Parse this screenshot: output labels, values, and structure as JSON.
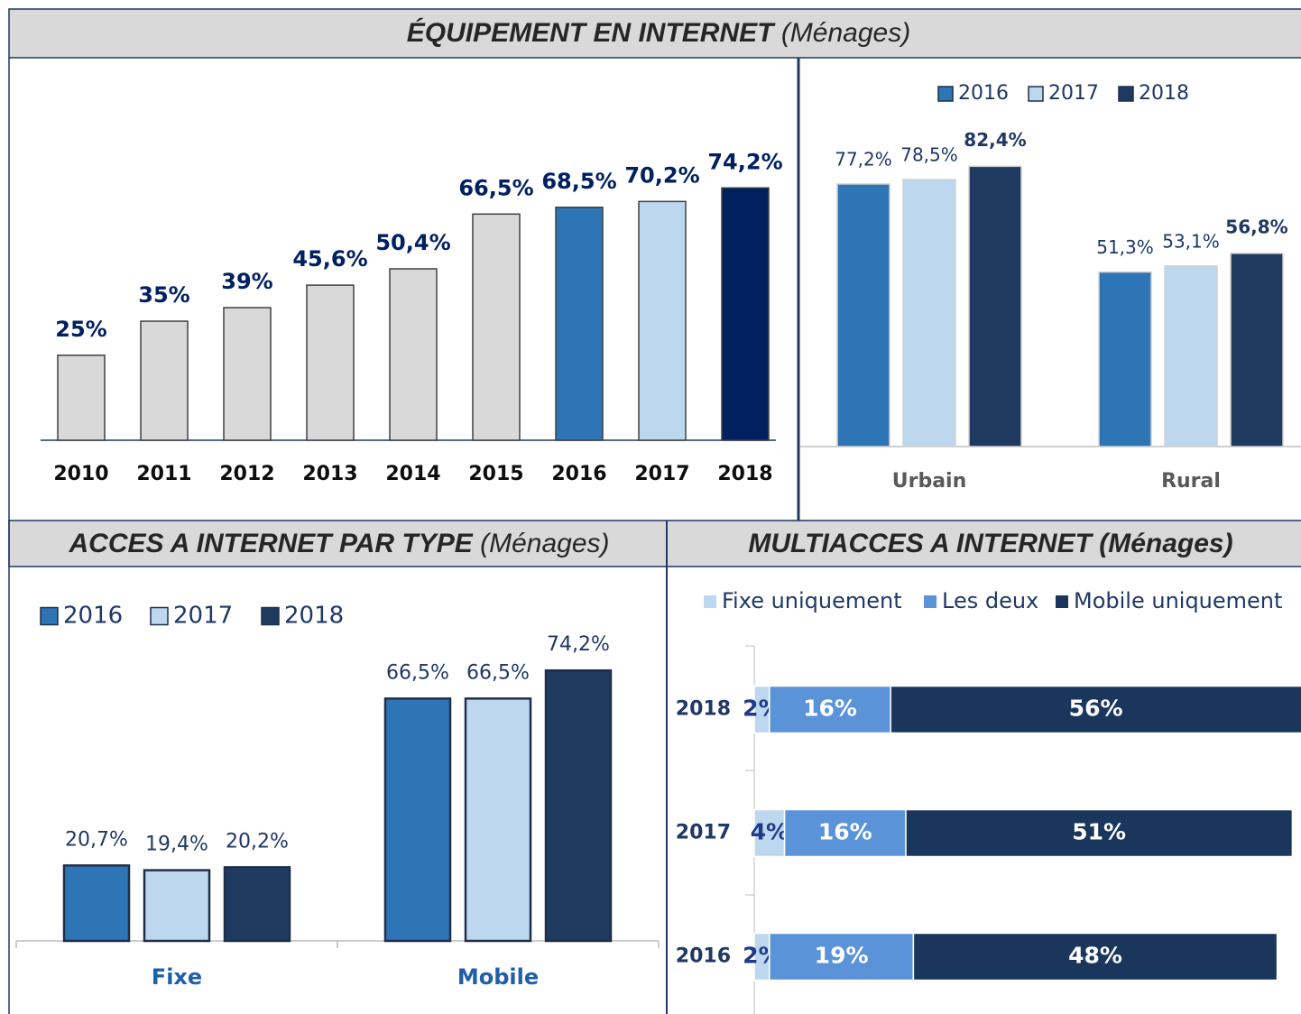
{
  "sections": [
    {
      "title": "ÉQUIPEMENT EN INTERNET",
      "subtitle": "(Ménages)"
    },
    {
      "title": "ACCES A INTERNET PAR TYPE",
      "subtitle": "(Ménages)"
    },
    {
      "title": "MULTIACCES A INTERNET (Ménages)"
    }
  ],
  "chart_data": [
    {
      "type": "bar",
      "categories": [
        "2010",
        "2011",
        "2012",
        "2013",
        "2014",
        "2015",
        "2016",
        "2017",
        "2018"
      ],
      "values": [
        25,
        35,
        39,
        45.6,
        50.4,
        66.5,
        68.5,
        70.2,
        74.2
      ],
      "value_labels": [
        "25%",
        "35%",
        "39%",
        "45,6%",
        "50,4%",
        "66,5%",
        "68,5%",
        "70,2%",
        "74,2%"
      ],
      "colors": [
        "#d9d9d9",
        "#d9d9d9",
        "#d9d9d9",
        "#d9d9d9",
        "#d9d9d9",
        "#d9d9d9",
        "#2e75b6",
        "#bdd7ee",
        "#002060"
      ],
      "ylim": [
        0,
        100
      ]
    },
    {
      "type": "grouped_bar",
      "categories": [
        "Urbain",
        "Rural"
      ],
      "series": [
        {
          "name": "2016",
          "color": "#2e75b6",
          "values": [
            77.2,
            51.3
          ],
          "value_labels": [
            "77,2%",
            "51,3%"
          ]
        },
        {
          "name": "2017",
          "color": "#bdd7ee",
          "values": [
            78.5,
            53.1
          ],
          "value_labels": [
            "78,5%",
            "53,1%"
          ]
        },
        {
          "name": "2018",
          "color": "#1f3a5f",
          "values": [
            82.4,
            56.8
          ],
          "value_labels": [
            "82,4%",
            "56,8%"
          ]
        }
      ],
      "ylim": [
        0,
        100
      ]
    },
    {
      "type": "grouped_bar",
      "categories": [
        "Fixe",
        "Mobile"
      ],
      "series": [
        {
          "name": "2016",
          "color": "#2e75b6",
          "values": [
            20.7,
            66.5
          ],
          "value_labels": [
            "20,7%",
            "66,5%"
          ]
        },
        {
          "name": "2017",
          "color": "#bdd7ee",
          "values": [
            19.4,
            66.5
          ],
          "value_labels": [
            "19,4%",
            "66,5%"
          ]
        },
        {
          "name": "2018",
          "color": "#1f3a5f",
          "values": [
            20.2,
            74.2
          ],
          "value_labels": [
            "20,2%",
            "74,2%"
          ]
        }
      ],
      "ylim": [
        0,
        100
      ]
    },
    {
      "type": "stacked_barh",
      "categories": [
        "2018",
        "2017",
        "2016"
      ],
      "series": [
        {
          "name": "Fixe uniquement",
          "color": "#bdd7ee",
          "values": [
            2,
            4,
            2
          ],
          "value_labels": [
            "2%",
            "4%",
            "2%"
          ]
        },
        {
          "name": "Les deux",
          "color": "#5b93d9",
          "values": [
            16,
            16,
            19
          ],
          "value_labels": [
            "16%",
            "16%",
            "19%"
          ]
        },
        {
          "name": "Mobile uniquement",
          "color": "#1a365d",
          "values": [
            56,
            51,
            48
          ],
          "value_labels": [
            "56%",
            "51%",
            "48%"
          ]
        }
      ],
      "xlim": [
        0,
        100
      ]
    }
  ]
}
